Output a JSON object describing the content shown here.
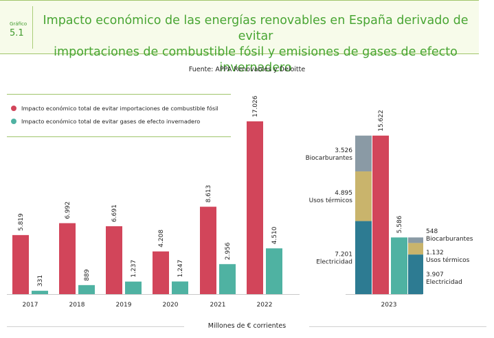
{
  "header": {
    "label": "Gráfico",
    "number": "5.1",
    "title_line1": "Impacto económico de las energías renovables en España derivado de evitar",
    "title_line2": "importaciones de combustible fósil y emisiones de gases de efecto invernadero"
  },
  "source": "Fuente: APPA Renovables y Deloitte",
  "units": "Millones de € corrientes",
  "colors": {
    "fossil": "#d2455a",
    "emissions": "#4fb2a2",
    "bio": "#8a9aa5",
    "thermal": "#c9b46c",
    "elec": "#2d7b92"
  },
  "chart_data": {
    "type": "bar",
    "categories": [
      "2017",
      "2018",
      "2019",
      "2020",
      "2021",
      "2022",
      "2023"
    ],
    "series": [
      {
        "name": "Impacto económico total de evitar importaciones de combustible fósil",
        "values": [
          5819,
          6992,
          6691,
          4208,
          8613,
          17026,
          15622
        ],
        "labels": [
          "5.819",
          "6.992",
          "6.691",
          "4.208",
          "8.613",
          "17.026",
          "15.622"
        ]
      },
      {
        "name": "Impacto económico total de evitar gases de efecto invernadero",
        "values": [
          331,
          889,
          1237,
          1247,
          2956,
          4510,
          5586
        ],
        "labels": [
          "331",
          "889",
          "1.237",
          "1.247",
          "2.956",
          "4.510",
          "5.586"
        ]
      }
    ],
    "breakdown_2023": {
      "fossil": [
        {
          "name": "Biocarburantes",
          "value": 3526,
          "label": "3.526"
        },
        {
          "name": "Usos térmicos",
          "value": 4895,
          "label": "4.895"
        },
        {
          "name": "Electricidad",
          "value": 7201,
          "label": "7.201"
        }
      ],
      "emissions": [
        {
          "name": "Biocarburantes",
          "value": 548,
          "label": "548"
        },
        {
          "name": "Usos térmicos",
          "value": 1132,
          "label": "1.132"
        },
        {
          "name": "Electricidad",
          "value": 3907,
          "label": "3.907"
        }
      ]
    },
    "ylabel": "Millones de € corrientes",
    "grid": false,
    "legend_position": "top-left"
  }
}
